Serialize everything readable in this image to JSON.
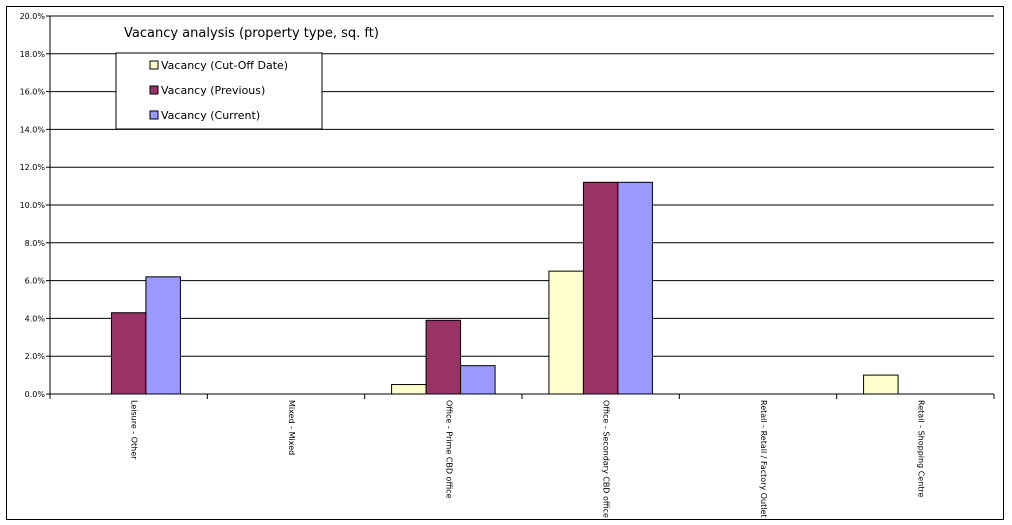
{
  "chart_data": {
    "type": "bar",
    "title": "Vacancy analysis (property type, sq. ft)",
    "xlabel": "",
    "ylabel": "",
    "ylim": [
      0,
      0.2
    ],
    "yticks": [
      "0.0%",
      "2.0%",
      "4.0%",
      "6.0%",
      "8.0%",
      "10.0%",
      "12.0%",
      "14.0%",
      "16.0%",
      "18.0%",
      "20.0%"
    ],
    "grid": true,
    "legend_position": "top-left",
    "categories": [
      "Leisure - Other",
      "Mixed - Mixed",
      "Office - Prime CBD office",
      "Office - Secondary CBD office",
      "Retail - Retail / Factory Outlet",
      "Retail - Shopping Centre"
    ],
    "series": [
      {
        "name": "Vacancy (Cut-Off Date)",
        "color": "#ffffcc",
        "values": [
          0,
          0,
          0.005,
          0.065,
          0,
          0.01
        ]
      },
      {
        "name": "Vacancy (Previous)",
        "color": "#993366",
        "values": [
          0.043,
          0,
          0.039,
          0.112,
          0,
          0
        ]
      },
      {
        "name": "Vacancy (Current)",
        "color": "#9999ff",
        "values": [
          0.062,
          0,
          0.015,
          0.112,
          0,
          0
        ]
      }
    ]
  }
}
